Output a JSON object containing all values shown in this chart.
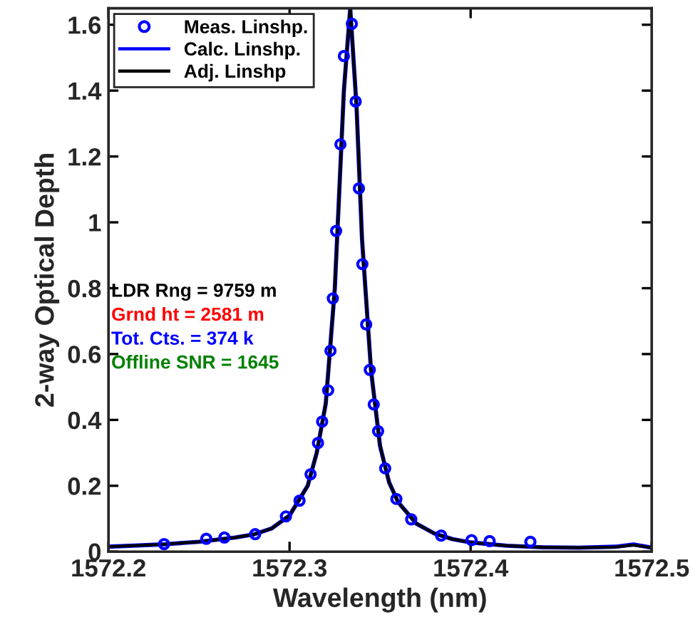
{
  "chart_data": {
    "type": "line",
    "xlabel": "Wavelength (nm)",
    "ylabel": "2-way Optical Depth",
    "xlim": [
      1572.2,
      1572.5
    ],
    "xticks": [
      1572.2,
      1572.3,
      1572.4,
      1572.5
    ],
    "ylim": [
      0,
      1.65
    ],
    "yticks": [
      0,
      0.2,
      0.4,
      0.6,
      0.8,
      1,
      1.2,
      1.4,
      1.6
    ],
    "legend": "top left",
    "grid": false,
    "annotations": [
      "LDR Rng = 9759 m",
      "Grnd ht = 2581 m",
      "Tot. Cts. = 374 k",
      "Offline SNR = 1645"
    ],
    "series": [
      {
        "name": "Meas. Linshp.",
        "type": "scatter",
        "marker": "circle",
        "color": "#0000ff",
        "x": [
          1572.2307,
          1572.254,
          1572.264,
          1572.281,
          1572.298,
          1572.3055,
          1572.3116,
          1572.3157,
          1572.318,
          1572.3213,
          1572.3226,
          1572.3239,
          1572.3257,
          1572.3281,
          1572.33,
          1572.3344,
          1572.3365,
          1572.3383,
          1572.3402,
          1572.3423,
          1572.3443,
          1572.3465,
          1572.3489,
          1572.3528,
          1572.359,
          1572.3672,
          1572.3837,
          1572.4005,
          1572.4105,
          1572.433
        ],
        "values": [
          0.023,
          0.039,
          0.043,
          0.053,
          0.107,
          0.155,
          0.235,
          0.33,
          0.395,
          0.49,
          0.61,
          0.769,
          0.974,
          1.237,
          1.505,
          1.603,
          1.367,
          1.103,
          0.873,
          0.69,
          0.552,
          0.447,
          0.366,
          0.253,
          0.16,
          0.098,
          0.049,
          0.035,
          0.032,
          0.03
        ]
      },
      {
        "name": "Calc. Linshp.",
        "marker": "none",
        "line_style": "solid",
        "color": "#0000ff",
        "x": [
          1572.2,
          1572.23,
          1572.25,
          1572.27,
          1572.28,
          1572.29,
          1572.3,
          1572.31,
          1572.315,
          1572.32,
          1572.325,
          1572.33,
          1572.3335,
          1572.337,
          1572.34,
          1572.345,
          1572.35,
          1572.355,
          1572.36,
          1572.37,
          1572.38,
          1572.39,
          1572.4,
          1572.42,
          1572.44,
          1572.46,
          1572.48,
          1572.49,
          1572.5
        ],
        "values": [
          0.015,
          0.022,
          0.03,
          0.043,
          0.052,
          0.07,
          0.11,
          0.2,
          0.3,
          0.45,
          0.8,
          1.4,
          1.65,
          1.35,
          0.95,
          0.55,
          0.32,
          0.21,
          0.15,
          0.085,
          0.055,
          0.038,
          0.028,
          0.018,
          0.013,
          0.012,
          0.015,
          0.022,
          0.012
        ]
      },
      {
        "name": "Adj. Linshp",
        "marker": "none",
        "line_style": "solid",
        "color": "#000000",
        "x": [
          1572.2,
          1572.23,
          1572.25,
          1572.27,
          1572.28,
          1572.29,
          1572.3,
          1572.31,
          1572.315,
          1572.32,
          1572.325,
          1572.33,
          1572.3335,
          1572.337,
          1572.34,
          1572.345,
          1572.35,
          1572.355,
          1572.36,
          1572.37,
          1572.38,
          1572.39,
          1572.4,
          1572.42,
          1572.44,
          1572.46,
          1572.48,
          1572.49,
          1572.5
        ],
        "values": [
          0.015,
          0.022,
          0.03,
          0.043,
          0.052,
          0.07,
          0.11,
          0.2,
          0.3,
          0.45,
          0.8,
          1.4,
          1.65,
          1.35,
          0.95,
          0.55,
          0.32,
          0.21,
          0.15,
          0.085,
          0.055,
          0.038,
          0.028,
          0.018,
          0.013,
          0.012,
          0.014,
          0.02,
          0.012
        ]
      }
    ]
  }
}
